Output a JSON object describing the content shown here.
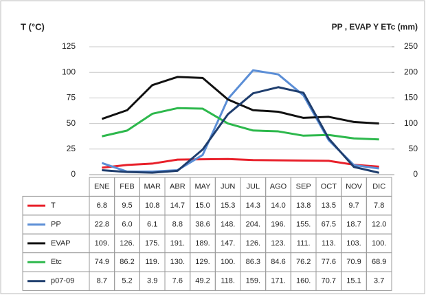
{
  "chart_data": {
    "type": "line",
    "y_label": "T (°C)",
    "y2_label": "PP , EVAP  Y ETc (mm)",
    "categories": [
      "ENE",
      "FEB",
      "MAR",
      "ABR",
      "MAY",
      "JUN",
      "JUL",
      "AGO",
      "SEP",
      "OCT",
      "NOV",
      "DIC"
    ],
    "ylim": [
      0,
      125
    ],
    "yticks": [
      0,
      25,
      50,
      75,
      100,
      125
    ],
    "y2lim": [
      0,
      250
    ],
    "y2ticks": [
      0,
      50,
      100,
      150,
      200,
      250
    ],
    "grid": true,
    "series": [
      {
        "name": "T",
        "color": "#e8202a",
        "values": [
          6.8,
          9.5,
          10.8,
          14.7,
          15.0,
          15.3,
          14.3,
          14.0,
          13.8,
          13.5,
          9.7,
          7.8
        ],
        "value_labels": [
          "6.8",
          "9.5",
          "10.8",
          "14.7",
          "15.0",
          "15.3",
          "14.3",
          "14.0",
          "13.8",
          "13.5",
          "9.7",
          "7.8"
        ]
      },
      {
        "name": "PP",
        "color": "#5b8ed6",
        "axis": "y2",
        "values": [
          22.8,
          6.0,
          6.1,
          8.8,
          38.6,
          148,
          204,
          196,
          155,
          67.5,
          18.7,
          12.0
        ],
        "value_labels": [
          "22.8",
          "6.0",
          "6.1",
          "8.8",
          "38.6",
          "148.",
          "204.",
          "196.",
          "155.",
          "67.5",
          "18.7",
          "12.0"
        ]
      },
      {
        "name": "EVAP",
        "color": "#111111",
        "axis": "y2",
        "values": [
          109,
          126,
          175,
          191,
          189,
          147,
          126,
          123,
          111,
          113,
          103,
          100
        ],
        "value_labels": [
          "109.",
          "126.",
          "175.",
          "191.",
          "189.",
          "147.",
          "126.",
          "123.",
          "111.",
          "113.",
          "103.",
          "100."
        ]
      },
      {
        "name": "Etc",
        "color": "#2db84c",
        "axis": "y2",
        "values": [
          74.9,
          86.2,
          119,
          130,
          129,
          100,
          86.3,
          84.6,
          76.2,
          77.6,
          70.9,
          68.9
        ],
        "value_labels": [
          "74.9",
          "86.2",
          "119.",
          "130.",
          "129.",
          "100.",
          "86.3",
          "84.6",
          "76.2",
          "77.6",
          "70.9",
          "68.9"
        ]
      },
      {
        "name": "p07-09",
        "color": "#1f3e6e",
        "axis": "y2",
        "values": [
          8.7,
          5.2,
          3.9,
          7.6,
          49.2,
          118,
          159,
          171,
          160,
          70.7,
          15.1,
          3.7
        ],
        "value_labels": [
          "8.7",
          "5.2",
          "3.9",
          "7.6",
          "49.2",
          "118.",
          "159.",
          "171.",
          "160.",
          "70.7",
          "15.1",
          "3.7"
        ]
      }
    ]
  }
}
